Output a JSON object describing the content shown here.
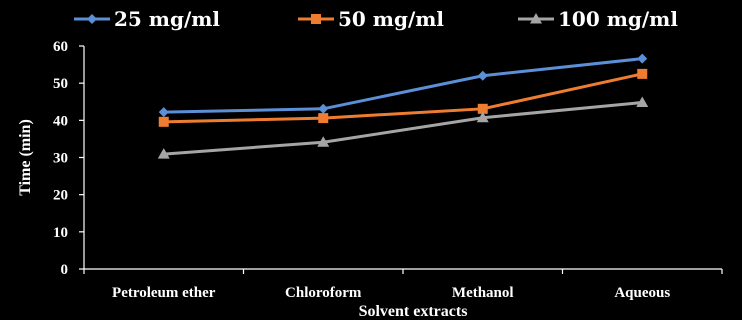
{
  "chart_data": {
    "type": "line",
    "title": "",
    "xlabel": "Solvent extracts",
    "ylabel": "Time (min)",
    "categories": [
      "Petroleum ether",
      "Chloroform",
      "Methanol",
      "Aqueous"
    ],
    "ylim": [
      0,
      60
    ],
    "yticks": [
      0,
      10,
      20,
      30,
      40,
      50,
      60
    ],
    "grid": false,
    "legend_position": "top",
    "series": [
      {
        "name": "25 mg/ml",
        "color": "#5b8fd6",
        "marker": "diamond",
        "values": [
          42.2,
          43.1,
          52.0,
          56.6
        ]
      },
      {
        "name": "50 mg/ml",
        "color": "#ee7d31",
        "marker": "square",
        "values": [
          39.6,
          40.6,
          43.1,
          52.5
        ]
      },
      {
        "name": "100 mg/ml",
        "color": "#a5a5a5",
        "marker": "triangle",
        "values": [
          30.9,
          34.1,
          40.7,
          44.8
        ]
      }
    ]
  }
}
